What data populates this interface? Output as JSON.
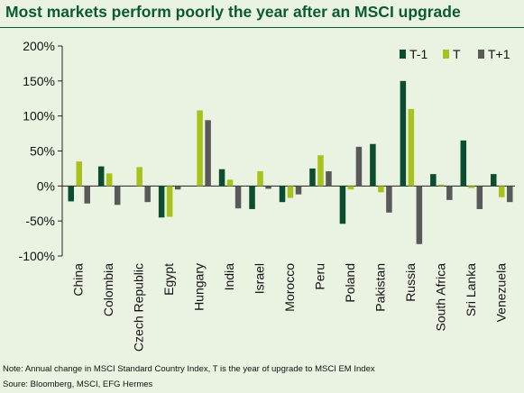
{
  "title": "Most markets perform poorly the year after an MSCI upgrade",
  "notes": {
    "note": "Note: Annual change in MSCI Standard Country Index, T is the year of upgrade to MSCI EM Index",
    "source": "Soure: Bloomberg, MSCI, EFG Hermes"
  },
  "colors": {
    "background": "#eaf3e2",
    "title": "#0c5a33",
    "T-1": "#0a4d2f",
    "T": "#a8c21c",
    "T+1": "#595959"
  },
  "chart_data": {
    "type": "bar",
    "title": "Most markets perform poorly the year after an MSCI upgrade",
    "xlabel": "",
    "ylabel": "",
    "ylim": [
      -100,
      200
    ],
    "yticks": [
      -100,
      -50,
      0,
      50,
      100,
      150,
      200
    ],
    "ytick_labels": [
      "-100%",
      "-50%",
      "0%",
      "50%",
      "100%",
      "150%",
      "200%"
    ],
    "grid": false,
    "legend": "top-right",
    "categories": [
      "China",
      "Colombia",
      "Czech Republic",
      "Egypt",
      "Hungary",
      "India",
      "Israel",
      "Morocco",
      "Peru",
      "Poland",
      "Pakistan",
      "Russia",
      "South Africa",
      "Sri Lanka",
      "Venezuela"
    ],
    "series": [
      {
        "name": "T-1",
        "values": [
          -22,
          28,
          0,
          -45,
          0,
          24,
          -33,
          -23,
          25,
          -54,
          60,
          150,
          17,
          65,
          17
        ]
      },
      {
        "name": "T",
        "values": [
          35,
          18,
          27,
          -44,
          108,
          9,
          21,
          -17,
          44,
          -5,
          -9,
          110,
          2,
          -3,
          -16
        ]
      },
      {
        "name": "T+1",
        "values": [
          -25,
          -27,
          -23,
          -5,
          94,
          -32,
          -4,
          -12,
          21,
          56,
          -38,
          -83,
          -20,
          -33,
          -23
        ]
      }
    ]
  }
}
